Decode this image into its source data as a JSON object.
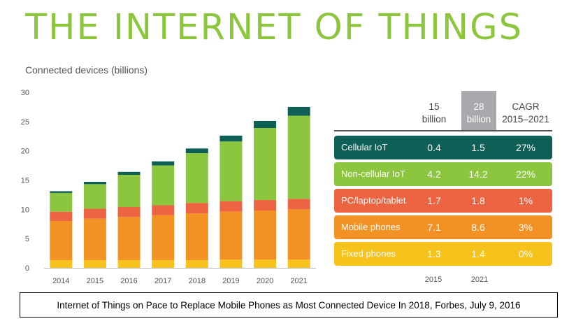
{
  "title": "THE INTERNET OF THINGS",
  "subtitle": "Connected devices (billions)",
  "chart_data": {
    "type": "bar",
    "stacked": true,
    "categories": [
      "2014",
      "2015",
      "2016",
      "2017",
      "2018",
      "2019",
      "2020",
      "2021"
    ],
    "yticks": [
      "0",
      "5",
      "10",
      "15",
      "20",
      "25",
      "30"
    ],
    "ylim": [
      0,
      30
    ],
    "series": [
      {
        "name": "Fixed phones",
        "color": "#f7c21b",
        "values": [
          1.3,
          1.3,
          1.3,
          1.3,
          1.3,
          1.4,
          1.4,
          1.4
        ]
      },
      {
        "name": "Mobile phones",
        "color": "#f39224",
        "values": [
          6.7,
          7.1,
          7.4,
          7.7,
          8.0,
          8.2,
          8.4,
          8.6
        ]
      },
      {
        "name": "PC/laptop/tablet",
        "color": "#ec6442",
        "values": [
          1.6,
          1.7,
          1.7,
          1.7,
          1.8,
          1.8,
          1.8,
          1.8
        ]
      },
      {
        "name": "Non-cellular IoT",
        "color": "#8cc63f",
        "values": [
          3.2,
          4.2,
          5.5,
          6.8,
          8.5,
          10.2,
          12.3,
          14.2
        ]
      },
      {
        "name": "Cellular IoT",
        "color": "#0e5f55",
        "values": [
          0.3,
          0.4,
          0.5,
          0.7,
          0.8,
          1.0,
          1.2,
          1.5
        ]
      }
    ]
  },
  "table": {
    "col1_header": [
      "15",
      "billion"
    ],
    "col2_header": [
      "28",
      "billion"
    ],
    "col3_header": [
      "CAGR",
      "2015–2021"
    ],
    "footer_years": [
      "2015",
      "2021"
    ],
    "rows": [
      {
        "label": "Cellular IoT",
        "v2015": "0.4",
        "v2021": "1.5",
        "cagr": "27%",
        "color": "#0e5f55"
      },
      {
        "label": "Non-cellular IoT",
        "v2015": "4.2",
        "v2021": "14.2",
        "cagr": "22%",
        "color": "#8cc63f"
      },
      {
        "label": "PC/laptop/tablet",
        "v2015": "1.7",
        "v2021": "1.8",
        "cagr": "1%",
        "color": "#ec6442"
      },
      {
        "label": "Mobile phones",
        "v2015": "7.1",
        "v2021": "8.6",
        "cagr": "3%",
        "color": "#f39224"
      },
      {
        "label": "Fixed phones",
        "v2015": "1.3",
        "v2021": "1.4",
        "cagr": "0%",
        "color": "#f7c21b"
      }
    ]
  },
  "caption": "Internet of Things on Pace to Replace Mobile Phones as Most Connected Device In 2018, Forbes, July 9, 2016"
}
